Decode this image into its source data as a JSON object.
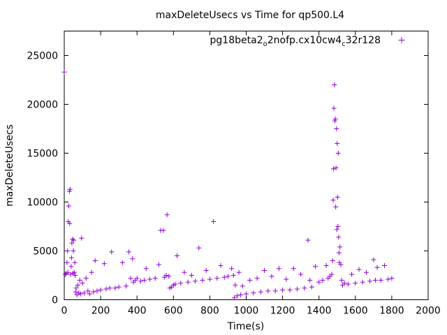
{
  "chart_data": {
    "type": "scatter",
    "title": "maxDeleteUsecs vs Time for qp500.L4",
    "xlabel": "Time(s)",
    "ylabel": "maxDeleteUsecs",
    "xlim": [
      0,
      2000
    ],
    "ylim": [
      0,
      27500
    ],
    "xticks": [
      0,
      200,
      400,
      600,
      800,
      1000,
      1200,
      1400,
      1600,
      1800,
      2000
    ],
    "yticks": [
      0,
      5000,
      10000,
      15000,
      20000,
      25000
    ],
    "grid": false,
    "legend_position": "top-right",
    "marker": "+",
    "series": [
      {
        "legend_parts": [
          {
            "text": "pg18beta2",
            "sub": false
          },
          {
            "text": "o",
            "sub": true
          },
          {
            "text": "2nofp.cx10cw4",
            "sub": false
          },
          {
            "text": "c",
            "sub": true
          },
          {
            "text": "32r128",
            "sub": false
          }
        ],
        "color": "#9400d3",
        "points": [
          [
            0,
            23300
          ],
          [
            5,
            2600
          ],
          [
            10,
            2700
          ],
          [
            15,
            3800
          ],
          [
            18,
            5000
          ],
          [
            20,
            2800
          ],
          [
            22,
            8000
          ],
          [
            25,
            9600
          ],
          [
            28,
            11100
          ],
          [
            30,
            7800
          ],
          [
            32,
            11300
          ],
          [
            35,
            2600
          ],
          [
            38,
            3400
          ],
          [
            40,
            4300
          ],
          [
            42,
            5800
          ],
          [
            45,
            6200
          ],
          [
            48,
            2700
          ],
          [
            50,
            5000
          ],
          [
            52,
            6100
          ],
          [
            55,
            2800
          ],
          [
            58,
            3800
          ],
          [
            60,
            2500
          ],
          [
            62,
            800
          ],
          [
            65,
            1200
          ],
          [
            70,
            500
          ],
          [
            75,
            1500
          ],
          [
            80,
            700
          ],
          [
            85,
            2000
          ],
          [
            90,
            600
          ],
          [
            95,
            6300
          ],
          [
            100,
            1700
          ],
          [
            110,
            700
          ],
          [
            120,
            2200
          ],
          [
            130,
            900
          ],
          [
            140,
            600
          ],
          [
            150,
            2800
          ],
          [
            160,
            800
          ],
          [
            170,
            4000
          ],
          [
            180,
            900
          ],
          [
            200,
            1000
          ],
          [
            220,
            3700
          ],
          [
            230,
            1100
          ],
          [
            250,
            1200
          ],
          [
            260,
            4900
          ],
          [
            280,
            1200
          ],
          [
            300,
            1300
          ],
          [
            320,
            3800
          ],
          [
            340,
            1400
          ],
          [
            355,
            4900
          ],
          [
            365,
            2200
          ],
          [
            375,
            4200
          ],
          [
            380,
            1800
          ],
          [
            390,
            2000
          ],
          [
            400,
            2200
          ],
          [
            420,
            1900
          ],
          [
            440,
            2000
          ],
          [
            450,
            3200
          ],
          [
            470,
            2100
          ],
          [
            500,
            2200
          ],
          [
            520,
            3600
          ],
          [
            530,
            7100
          ],
          [
            545,
            7100
          ],
          [
            550,
            2300
          ],
          [
            560,
            2500
          ],
          [
            565,
            8700
          ],
          [
            575,
            2400
          ],
          [
            580,
            1200
          ],
          [
            590,
            1300
          ],
          [
            600,
            1500
          ],
          [
            610,
            1600
          ],
          [
            620,
            4500
          ],
          [
            640,
            1700
          ],
          [
            660,
            2800
          ],
          [
            680,
            1800
          ],
          [
            700,
            2500
          ],
          [
            720,
            1900
          ],
          [
            740,
            5300
          ],
          [
            760,
            2000
          ],
          [
            780,
            3000
          ],
          [
            800,
            2100
          ],
          [
            820,
            8000
          ],
          [
            840,
            2200
          ],
          [
            860,
            3500
          ],
          [
            880,
            2300
          ],
          [
            900,
            2400
          ],
          [
            920,
            3200
          ],
          [
            930,
            2500
          ],
          [
            935,
            200
          ],
          [
            940,
            1500
          ],
          [
            950,
            400
          ],
          [
            960,
            2800
          ],
          [
            970,
            500
          ],
          [
            980,
            1400
          ],
          [
            1000,
            600
          ],
          [
            1020,
            2000
          ],
          [
            1040,
            700
          ],
          [
            1060,
            2200
          ],
          [
            1080,
            800
          ],
          [
            1100,
            3000
          ],
          [
            1120,
            900
          ],
          [
            1140,
            2400
          ],
          [
            1160,
            900
          ],
          [
            1180,
            3200
          ],
          [
            1200,
            1000
          ],
          [
            1220,
            2100
          ],
          [
            1240,
            1000
          ],
          [
            1260,
            3200
          ],
          [
            1280,
            1100
          ],
          [
            1300,
            2600
          ],
          [
            1320,
            1200
          ],
          [
            1340,
            6100
          ],
          [
            1350,
            2000
          ],
          [
            1360,
            1300
          ],
          [
            1380,
            3400
          ],
          [
            1400,
            1800
          ],
          [
            1420,
            2000
          ],
          [
            1440,
            3500
          ],
          [
            1450,
            2200
          ],
          [
            1460,
            2400
          ],
          [
            1470,
            2600
          ],
          [
            1475,
            4000
          ],
          [
            1478,
            10200
          ],
          [
            1480,
            13400
          ],
          [
            1482,
            19600
          ],
          [
            1485,
            22000
          ],
          [
            1487,
            18300
          ],
          [
            1490,
            18500
          ],
          [
            1492,
            9500
          ],
          [
            1494,
            13500
          ],
          [
            1496,
            17500
          ],
          [
            1498,
            7200
          ],
          [
            1500,
            16000
          ],
          [
            1502,
            10500
          ],
          [
            1504,
            7500
          ],
          [
            1506,
            15000
          ],
          [
            1508,
            6400
          ],
          [
            1510,
            4800
          ],
          [
            1512,
            3800
          ],
          [
            1515,
            5400
          ],
          [
            1520,
            3600
          ],
          [
            1525,
            2000
          ],
          [
            1530,
            1500
          ],
          [
            1540,
            1700
          ],
          [
            1560,
            1600
          ],
          [
            1580,
            2600
          ],
          [
            1600,
            1700
          ],
          [
            1620,
            3100
          ],
          [
            1640,
            1800
          ],
          [
            1660,
            2800
          ],
          [
            1680,
            1900
          ],
          [
            1700,
            4100
          ],
          [
            1710,
            2000
          ],
          [
            1720,
            3300
          ],
          [
            1740,
            2000
          ],
          [
            1760,
            3500
          ],
          [
            1780,
            2100
          ],
          [
            1800,
            2200
          ]
        ]
      }
    ]
  }
}
